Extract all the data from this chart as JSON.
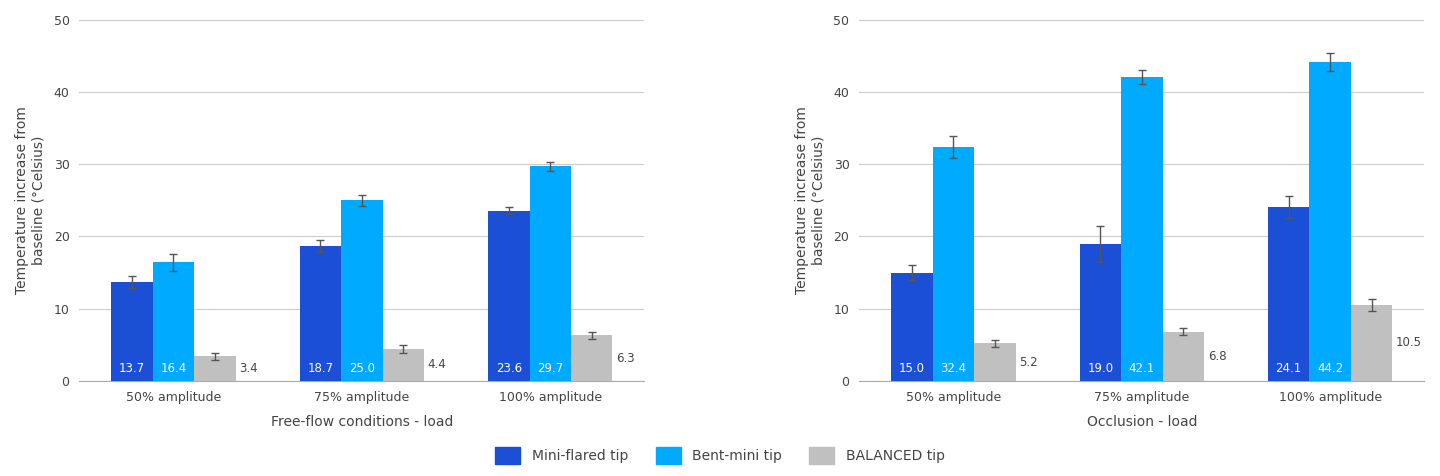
{
  "chart1": {
    "title": "",
    "xlabel": "Free-flow conditions - load",
    "ylabel": "Temperature increase from\nbaseline (°Celsius)",
    "categories": [
      "50% amplitude",
      "75% amplitude",
      "100% amplitude"
    ],
    "series": {
      "mini_flared": [
        13.7,
        18.7,
        23.6
      ],
      "bent_mini": [
        16.4,
        25.0,
        29.7
      ],
      "balanced": [
        3.4,
        4.4,
        6.3
      ]
    },
    "errors": {
      "mini_flared": [
        0.8,
        0.8,
        0.5
      ],
      "bent_mini": [
        1.2,
        0.8,
        0.6
      ],
      "balanced": [
        0.5,
        0.5,
        0.5
      ]
    },
    "ylim": [
      0,
      50
    ],
    "yticks": [
      0,
      10,
      20,
      30,
      40,
      50
    ]
  },
  "chart2": {
    "title": "",
    "xlabel": "Occlusion - load",
    "ylabel": "Temperature increase from\nbaseline (°Celsius)",
    "categories": [
      "50% amplitude",
      "75% amplitude",
      "100% amplitude"
    ],
    "series": {
      "mini_flared": [
        15.0,
        19.0,
        24.1
      ],
      "bent_mini": [
        32.4,
        42.1,
        44.2
      ],
      "balanced": [
        5.2,
        6.8,
        10.5
      ]
    },
    "errors": {
      "mini_flared": [
        1.0,
        2.5,
        1.5
      ],
      "bent_mini": [
        1.5,
        1.0,
        1.2
      ],
      "balanced": [
        0.5,
        0.5,
        0.8
      ]
    },
    "ylim": [
      0,
      50
    ],
    "yticks": [
      0,
      10,
      20,
      30,
      40,
      50
    ]
  },
  "colors": {
    "mini_flared": "#1a4fd6",
    "bent_mini": "#00aaff",
    "balanced": "#c0c0c0"
  },
  "legend": {
    "mini_flared": "Mini-flared tip",
    "bent_mini": "Bent-mini tip",
    "balanced": "BALANCED tip"
  },
  "bar_width": 0.22,
  "label_fontsize": 8.5,
  "axis_fontsize": 10,
  "tick_fontsize": 9,
  "background_color": "#ffffff"
}
